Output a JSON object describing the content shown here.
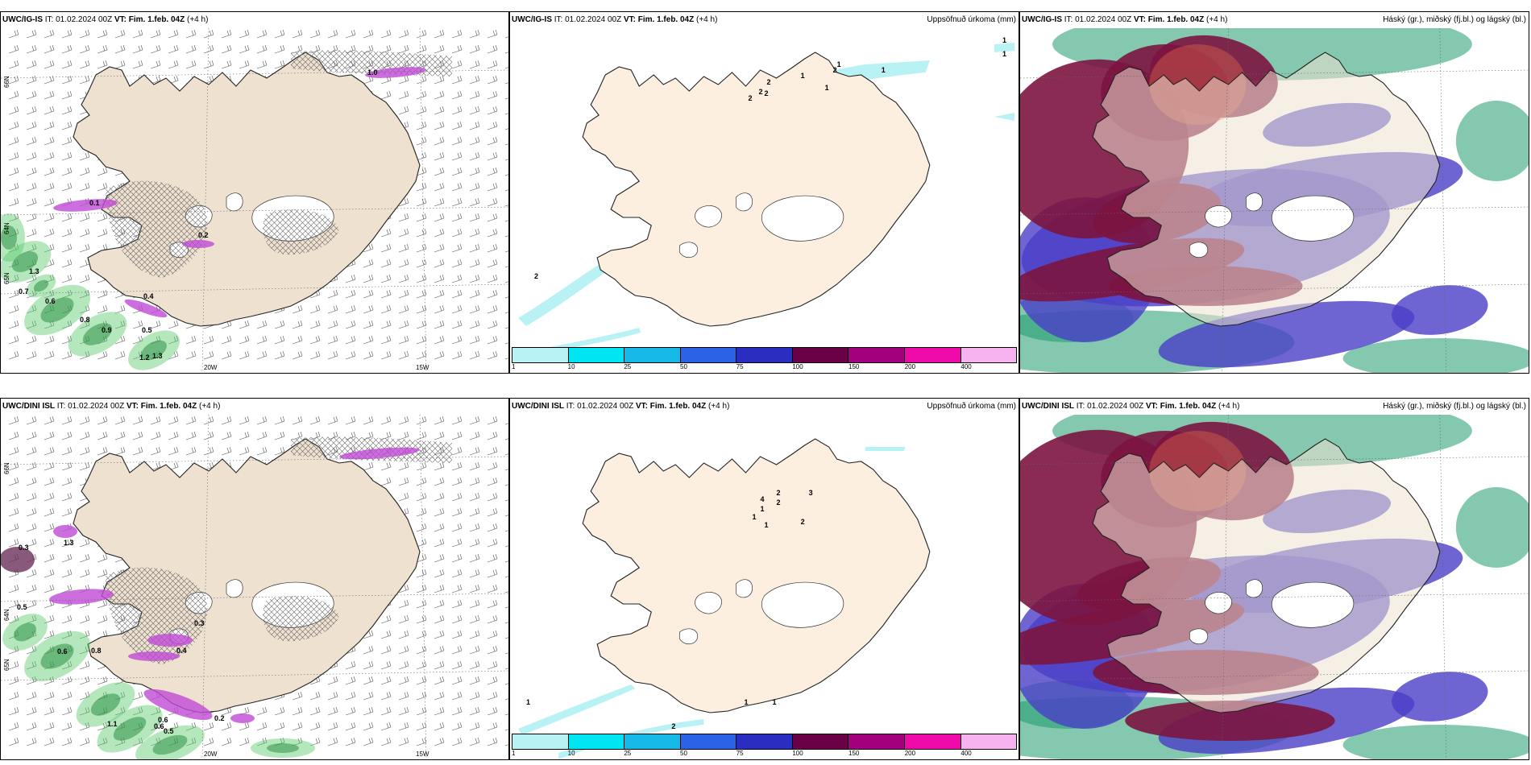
{
  "rows": [
    {
      "model": "UWC/IG-IS",
      "it_label": "IT:",
      "it_value": "01.02.2024 00Z",
      "vt_label": "VT:",
      "vt_value": "Fim. 1.feb. 04Z",
      "lead": "(+4 h)"
    },
    {
      "model": "UWC/DINI ISL",
      "it_label": "IT:",
      "it_value": "01.02.2024 00Z",
      "vt_label": "VT:",
      "vt_value": "Fim. 1.feb. 04Z",
      "lead": "(+4 h)"
    }
  ],
  "titles": {
    "precip": "Uppsöfnuð úrkoma (mm)",
    "clouds": "Háský (gr.), miðský (fj.bl.) og lágský (bl.)"
  },
  "colorbar": {
    "labels": [
      "1",
      "10",
      "25",
      "50",
      "75",
      "100",
      "150",
      "200",
      "400",
      ""
    ],
    "colors": [
      "#b8f2f5",
      "#00e5f2",
      "#16b8e8",
      "#2b62e6",
      "#2a2ec0",
      "#6a0045",
      "#a3007e",
      "#ee0aa8",
      "#f6b3ef"
    ]
  },
  "axis_labels": {
    "lon": [
      "20W",
      "15W"
    ],
    "lat": [
      "66N",
      "64N",
      "65N"
    ]
  },
  "map_values": {
    "top_left": [
      "0.7",
      "0.6",
      "0.8",
      "0.9",
      "0.5",
      "1.2",
      "1.3",
      "0.4",
      "1.3",
      "0.2",
      "1.0",
      "0.1"
    ],
    "bottom_left": [
      "0.3",
      "0.5",
      "0.6",
      "0.8",
      "1.1",
      "0.6",
      "0.6",
      "0.5",
      "0.4",
      "0.3",
      "1.3",
      "0.2"
    ],
    "top_mid": [
      "2",
      "2",
      "2",
      "1",
      "2",
      "1",
      "1",
      "2",
      "1",
      "1",
      "1",
      "2"
    ],
    "bottom_mid": [
      "4",
      "2",
      "3",
      "1",
      "1",
      "1",
      "2",
      "2",
      "1",
      "1",
      "2",
      "1"
    ]
  },
  "legend_colors": {
    "land": "#efe1d0",
    "land_precip_panel": "#fcefe0",
    "high_cloud": "#7c1440",
    "mid_cloud": "#4a3ec7",
    "low_cloud": "#1f9a6f",
    "green_precip": "#5cc96a",
    "purple_precip": "#c14ad6"
  }
}
